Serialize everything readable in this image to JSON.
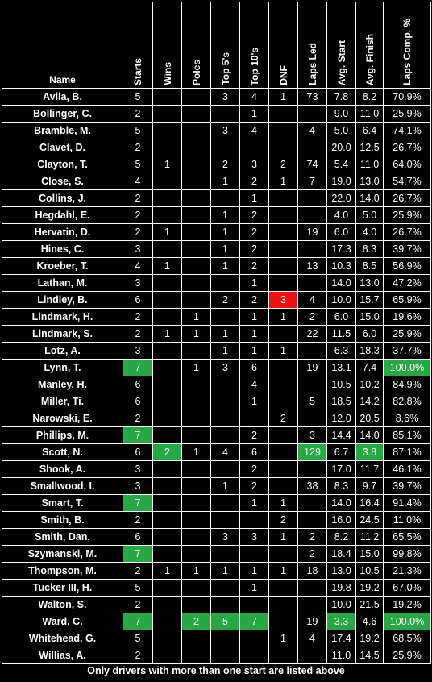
{
  "chart_data": {
    "type": "table",
    "columns": [
      "Name",
      "Starts",
      "Wins",
      "Poles",
      "Top 5's",
      "Top 10's",
      "DNF",
      "Laps Led",
      "Avg. Start",
      "Avg. Finish",
      "Laps Comp. %"
    ],
    "rows": [
      [
        "Avila, B.",
        "5",
        "",
        "",
        "3",
        "4",
        "1",
        "73",
        "7.8",
        "8.2",
        "70.9%"
      ],
      [
        "Bollinger, C.",
        "2",
        "",
        "",
        "",
        "1",
        "",
        "",
        "9.0",
        "11.0",
        "25.9%"
      ],
      [
        "Bramble, M.",
        "5",
        "",
        "",
        "3",
        "4",
        "",
        "4",
        "5.0",
        "6.4",
        "74.1%"
      ],
      [
        "Clavet, D.",
        "2",
        "",
        "",
        "",
        "",
        "",
        "",
        "20.0",
        "12.5",
        "26.7%"
      ],
      [
        "Clayton, T.",
        "5",
        "1",
        "",
        "2",
        "3",
        "2",
        "74",
        "5.4",
        "11.0",
        "64.0%"
      ],
      [
        "Close, S.",
        "4",
        "",
        "",
        "1",
        "2",
        "1",
        "7",
        "19.0",
        "13.0",
        "54.7%"
      ],
      [
        "Collins, J.",
        "2",
        "",
        "",
        "",
        "1",
        "",
        "",
        "22.0",
        "14.0",
        "26.7%"
      ],
      [
        "Hegdahl, E.",
        "2",
        "",
        "",
        "1",
        "2",
        "",
        "",
        "4.0",
        "5.0",
        "25.9%"
      ],
      [
        "Hervatin, D.",
        "2",
        "1",
        "",
        "1",
        "2",
        "",
        "19",
        "6.0",
        "4.0",
        "26.7%"
      ],
      [
        "Hines, C.",
        "3",
        "",
        "",
        "1",
        "2",
        "",
        "",
        "17.3",
        "8.3",
        "39.7%"
      ],
      [
        "Kroeber, T.",
        "4",
        "1",
        "",
        "1",
        "2",
        "",
        "13",
        "10.3",
        "8.5",
        "56.9%"
      ],
      [
        "Lathan, M.",
        "3",
        "",
        "",
        "",
        "1",
        "",
        "",
        "14.0",
        "13.0",
        "47.2%"
      ],
      [
        "Lindley, B.",
        "6",
        "",
        "",
        "2",
        "2",
        "3",
        "4",
        "10.0",
        "15.7",
        "65.9%"
      ],
      [
        "Lindmark, H.",
        "2",
        "",
        "1",
        "",
        "1",
        "1",
        "2",
        "6.0",
        "15.0",
        "19.6%"
      ],
      [
        "Lindmark, S.",
        "2",
        "1",
        "1",
        "1",
        "1",
        "",
        "22",
        "11.5",
        "6.0",
        "25.9%"
      ],
      [
        "Lotz, A.",
        "3",
        "",
        "",
        "1",
        "1",
        "1",
        "",
        "6.3",
        "18.3",
        "37.7%"
      ],
      [
        "Lynn, T.",
        "7",
        "",
        "1",
        "3",
        "6",
        "",
        "19",
        "13.1",
        "7.4",
        "100.0%"
      ],
      [
        "Manley, H.",
        "6",
        "",
        "",
        "",
        "4",
        "",
        "",
        "10.5",
        "10.2",
        "84.9%"
      ],
      [
        "Miller, Ti.",
        "6",
        "",
        "",
        "",
        "1",
        "",
        "5",
        "18.5",
        "14.2",
        "82.8%"
      ],
      [
        "Narowski, E.",
        "2",
        "",
        "",
        "",
        "",
        "2",
        "",
        "12.0",
        "20.5",
        "8.6%"
      ],
      [
        "Phillips, M.",
        "7",
        "",
        "",
        "",
        "2",
        "",
        "3",
        "14.4",
        "14.0",
        "85.1%"
      ],
      [
        "Scott, N.",
        "6",
        "2",
        "1",
        "4",
        "6",
        "",
        "129",
        "6.7",
        "3.8",
        "87.1%"
      ],
      [
        "Shook, A.",
        "3",
        "",
        "",
        "",
        "2",
        "",
        "",
        "17.0",
        "11.7",
        "46.1%"
      ],
      [
        "Smallwood, I.",
        "3",
        "",
        "",
        "1",
        "2",
        "",
        "38",
        "8.3",
        "9.7",
        "39.7%"
      ],
      [
        "Smart, T.",
        "7",
        "",
        "",
        "",
        "1",
        "1",
        "",
        "14.0",
        "16.4",
        "91.4%"
      ],
      [
        "Smith, B.",
        "2",
        "",
        "",
        "",
        "",
        "2",
        "",
        "16.0",
        "24.5",
        "11.0%"
      ],
      [
        "Smith, Dan.",
        "6",
        "",
        "",
        "3",
        "3",
        "1",
        "2",
        "8.2",
        "11.2",
        "65.5%"
      ],
      [
        "Szymanski, M.",
        "7",
        "",
        "",
        "",
        "",
        "",
        "2",
        "18.4",
        "15.0",
        "99.8%"
      ],
      [
        "Thompson, M.",
        "2",
        "1",
        "1",
        "1",
        "1",
        "1",
        "18",
        "13.0",
        "10.5",
        "21.3%"
      ],
      [
        "Tucker III, H.",
        "5",
        "",
        "",
        "",
        "1",
        "",
        "",
        "19.8",
        "19.2",
        "67.0%"
      ],
      [
        "Walton, S.",
        "2",
        "",
        "",
        "",
        "",
        "",
        "",
        "10.0",
        "21.5",
        "19.2%"
      ],
      [
        "Ward, C.",
        "7",
        "",
        "2",
        "5",
        "7",
        "",
        "19",
        "3.3",
        "4.6",
        "100.0%"
      ],
      [
        "Whitehead, G.",
        "5",
        "",
        "",
        "",
        "",
        "1",
        "4",
        "17.4",
        "19.2",
        "68.5%"
      ],
      [
        "Willias, A.",
        "2",
        "",
        "",
        "",
        "",
        "",
        "",
        "11.0",
        "14.5",
        "25.9%"
      ]
    ],
    "highlights": {
      "green": [
        [
          16,
          1
        ],
        [
          16,
          10
        ],
        [
          20,
          1
        ],
        [
          21,
          2
        ],
        [
          21,
          7
        ],
        [
          21,
          9
        ],
        [
          24,
          1
        ],
        [
          27,
          1
        ],
        [
          31,
          1
        ],
        [
          31,
          3
        ],
        [
          31,
          4
        ],
        [
          31,
          5
        ],
        [
          31,
          8
        ],
        [
          31,
          10
        ]
      ],
      "red": [
        [
          12,
          6
        ]
      ]
    },
    "highlight_colors": {
      "green": "#28a745",
      "red": "#ee1111"
    }
  },
  "footnote": "Only drivers with more than one start are listed above"
}
